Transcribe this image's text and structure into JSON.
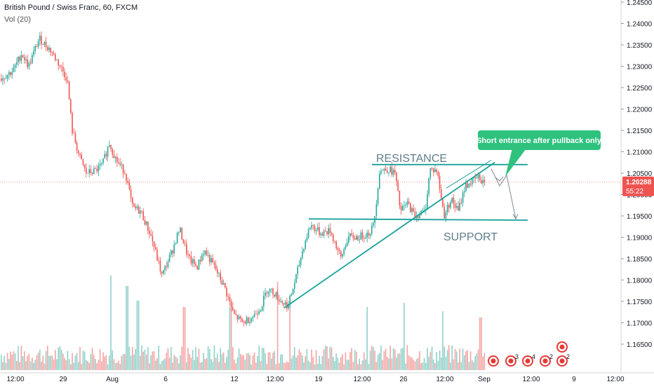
{
  "header": {
    "title": "British Pound / Swiss Franc, 60, FXCM",
    "volume_label": "Vol (20)"
  },
  "colors": {
    "up": "#26a69a",
    "down": "#ef5350",
    "volume_up": "#8fd1c9",
    "volume_down": "#f4a3a2",
    "trendline": "#1aa39a",
    "annotation_bg": "#2ec27e",
    "price_tag": "#ef5350",
    "axis_text": "#131722",
    "badge": "#e53935"
  },
  "chart_data": {
    "type": "candlestick",
    "symbol": "GBPCHF",
    "interval": "60",
    "y_axis": {
      "ticks": [
        "1.24500",
        "1.24000",
        "1.23500",
        "1.23000",
        "1.22500",
        "1.22000",
        "1.21500",
        "1.21000",
        "1.20500",
        "1.20000",
        "1.19500",
        "1.19000",
        "1.18500",
        "1.18000",
        "1.17500",
        "1.17000",
        "1.16500"
      ],
      "range": [
        1.1625,
        1.245
      ]
    },
    "x_axis": {
      "ticks": [
        "12:00",
        "29",
        "Aug",
        "6",
        "12",
        "12:00",
        "19",
        "12:00",
        "26",
        "12:00",
        "Sep",
        "12:00",
        "9",
        "12:00"
      ]
    },
    "last_price": "1.20288",
    "countdown": "55:22",
    "price_path": [
      [
        0,
        1.227
      ],
      [
        18,
        1.229
      ],
      [
        30,
        1.233
      ],
      [
        40,
        1.23
      ],
      [
        55,
        1.2365
      ],
      [
        70,
        1.234
      ],
      [
        85,
        1.23
      ],
      [
        95,
        1.227
      ],
      [
        102,
        1.215
      ],
      [
        112,
        1.209
      ],
      [
        122,
        1.205
      ],
      [
        135,
        1.2055
      ],
      [
        145,
        1.207
      ],
      [
        155,
        1.212
      ],
      [
        165,
        1.208
      ],
      [
        178,
        1.205
      ],
      [
        188,
        1.197
      ],
      [
        200,
        1.196
      ],
      [
        215,
        1.19
      ],
      [
        230,
        1.181
      ],
      [
        245,
        1.187
      ],
      [
        255,
        1.192
      ],
      [
        268,
        1.185
      ],
      [
        280,
        1.183
      ],
      [
        290,
        1.187
      ],
      [
        305,
        1.183
      ],
      [
        320,
        1.178
      ],
      [
        332,
        1.172
      ],
      [
        345,
        1.17
      ],
      [
        360,
        1.1715
      ],
      [
        372,
        1.174
      ],
      [
        380,
        1.178
      ],
      [
        390,
        1.177
      ],
      [
        400,
        1.175
      ],
      [
        410,
        1.174
      ],
      [
        420,
        1.18
      ],
      [
        432,
        1.188
      ],
      [
        442,
        1.193
      ],
      [
        455,
        1.191
      ],
      [
        470,
        1.1915
      ],
      [
        485,
        1.185
      ],
      [
        495,
        1.19
      ],
      [
        510,
        1.19
      ],
      [
        525,
        1.191
      ],
      [
        532,
        1.193
      ],
      [
        540,
        1.2055
      ],
      [
        552,
        1.206
      ],
      [
        562,
        1.205
      ],
      [
        570,
        1.196
      ],
      [
        580,
        1.198
      ],
      [
        590,
        1.195
      ],
      [
        605,
        1.196
      ],
      [
        612,
        1.206
      ],
      [
        622,
        1.2055
      ],
      [
        632,
        1.195
      ],
      [
        642,
        1.199
      ],
      [
        652,
        1.196
      ],
      [
        662,
        1.202
      ],
      [
        672,
        1.203
      ],
      [
        680,
        1.204
      ],
      [
        690,
        1.2029
      ]
    ],
    "volume_spikes": [
      [
        157,
        0.45
      ],
      [
        180,
        0.4
      ],
      [
        196,
        0.33
      ],
      [
        262,
        0.3
      ],
      [
        328,
        0.3
      ],
      [
        395,
        0.42
      ],
      [
        412,
        0.35
      ],
      [
        522,
        0.3
      ],
      [
        575,
        0.32
      ],
      [
        630,
        0.28
      ],
      [
        684,
        0.25
      ]
    ],
    "lines": [
      {
        "name": "resistance",
        "x1": 530,
        "y1": 1.207,
        "x2": 752,
        "y2": 1.207
      },
      {
        "name": "support",
        "x1": 440,
        "y1": 1.1943,
        "x2": 752,
        "y2": 1.194
      },
      {
        "name": "ascending-trendline",
        "x1": 405,
        "y1": 1.1735,
        "x2": 705,
        "y2": 1.2075
      },
      {
        "name": "upper-channel",
        "x1": 636,
        "y1": 1.2015,
        "x2": 700,
        "y2": 1.208
      }
    ],
    "projection": [
      [
        700,
        1.206
      ],
      [
        712,
        1.202
      ],
      [
        722,
        1.2045
      ],
      [
        735,
        1.1943
      ]
    ],
    "labels": {
      "resistance": "RESISTANCE",
      "support": "SUPPORT"
    },
    "annotation": "Short entrance after pullback only",
    "event_badges": [
      "3",
      "4",
      "2",
      "2"
    ]
  }
}
